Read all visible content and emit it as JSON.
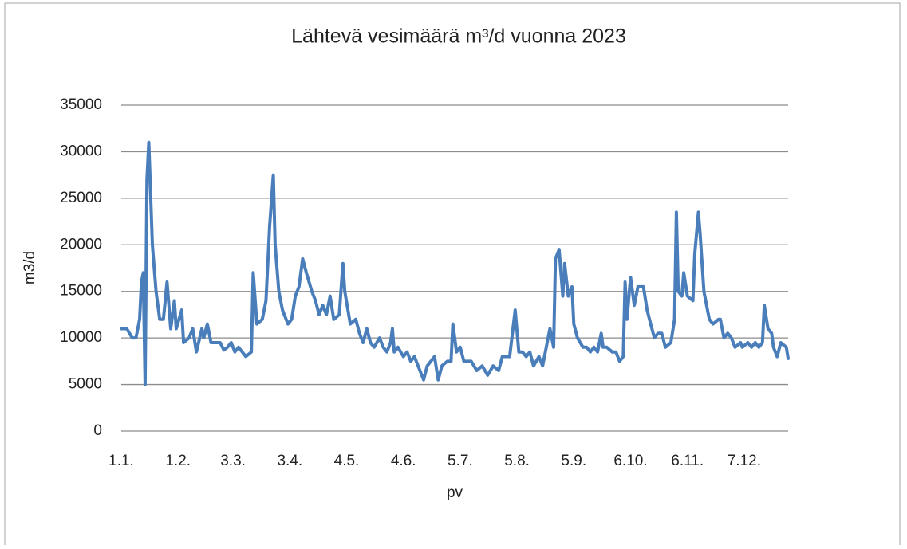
{
  "chart_data": {
    "type": "line",
    "title": "Lähtevä vesimäärä m³/d vuonna 2023",
    "x_label": "pv",
    "y_label": "m3/d",
    "xlim": [
      1,
      365
    ],
    "xticks": [
      {
        "value": 1,
        "label": "1.1."
      },
      {
        "value": 32,
        "label": "1.2."
      },
      {
        "value": 62,
        "label": "3.3."
      },
      {
        "value": 93,
        "label": "3.4."
      },
      {
        "value": 124,
        "label": "4.5."
      },
      {
        "value": 155,
        "label": "4.6."
      },
      {
        "value": 186,
        "label": "5.7."
      },
      {
        "value": 217,
        "label": "5.8."
      },
      {
        "value": 248,
        "label": "5.9."
      },
      {
        "value": 279,
        "label": "6.10."
      },
      {
        "value": 310,
        "label": "6.11."
      },
      {
        "value": 341,
        "label": "7.12."
      }
    ],
    "ylim": [
      0,
      35000
    ],
    "yticks": [
      0,
      5000,
      10000,
      15000,
      20000,
      25000,
      30000,
      35000
    ],
    "grid": true,
    "x": [
      1,
      4,
      7,
      9,
      11,
      12,
      13,
      14,
      15,
      16,
      18,
      20,
      22,
      24,
      26,
      28,
      30,
      31,
      34,
      35,
      38,
      40,
      42,
      45,
      46,
      48,
      50,
      55,
      57,
      59,
      61,
      63,
      65,
      69,
      72,
      73,
      75,
      78,
      80,
      82,
      84,
      85,
      87,
      89,
      92,
      94,
      96,
      98,
      100,
      102,
      105,
      107,
      109,
      111,
      113,
      115,
      117,
      120,
      122,
      123,
      126,
      129,
      131,
      133,
      135,
      137,
      139,
      142,
      144,
      146,
      148,
      149,
      150,
      152,
      155,
      157,
      159,
      161,
      163,
      166,
      168,
      170,
      172,
      174,
      176,
      179,
      181,
      182,
      184,
      186,
      188,
      192,
      195,
      198,
      201,
      204,
      207,
      209,
      213,
      216,
      218,
      220,
      222,
      224,
      226,
      229,
      231,
      233,
      235,
      237,
      238,
      240,
      242,
      243,
      245,
      247,
      248,
      250,
      253,
      255,
      257,
      259,
      261,
      263,
      264,
      266,
      269,
      271,
      273,
      275,
      276,
      277,
      279,
      281,
      283,
      286,
      288,
      290,
      292,
      294,
      296,
      298,
      301,
      303,
      304,
      305,
      307,
      308,
      310,
      313,
      314,
      316,
      317,
      319,
      321,
      322,
      324,
      327,
      328,
      330,
      332,
      334,
      336,
      339,
      340,
      343,
      345,
      347,
      349,
      351,
      352,
      354,
      356,
      357,
      359,
      361,
      364,
      365
    ],
    "series": [
      {
        "name": "m3/d",
        "color": "#4a7ebb",
        "values": [
          11000,
          11000,
          10000,
          10000,
          12000,
          16000,
          17000,
          5000,
          27000,
          31000,
          20000,
          15000,
          12000,
          12000,
          16000,
          11000,
          14000,
          11000,
          13000,
          9500,
          10000,
          11000,
          8500,
          11000,
          10000,
          11500,
          9500,
          9500,
          8700,
          9000,
          9500,
          8500,
          9000,
          8000,
          8500,
          17000,
          11500,
          12000,
          14000,
          22000,
          27500,
          20000,
          15000,
          13000,
          11500,
          12000,
          14500,
          15500,
          18500,
          17000,
          15000,
          14000,
          12500,
          13500,
          12500,
          14500,
          12000,
          12500,
          18000,
          15000,
          11500,
          12000,
          10500,
          9500,
          11000,
          9500,
          9000,
          10000,
          9000,
          8500,
          9500,
          11000,
          8500,
          9000,
          8000,
          8500,
          7500,
          8000,
          7000,
          5500,
          7000,
          7500,
          8000,
          5500,
          7000,
          7500,
          7500,
          11500,
          8500,
          9000,
          7500,
          7500,
          6500,
          7000,
          6000,
          7000,
          6500,
          8000,
          8000,
          13000,
          8500,
          8500,
          8000,
          8500,
          7000,
          8000,
          7000,
          9000,
          11000,
          9000,
          18500,
          19500,
          14500,
          18000,
          14500,
          15500,
          11500,
          10000,
          9000,
          9000,
          8500,
          9000,
          8500,
          10500,
          9000,
          9000,
          8500,
          8500,
          7500,
          8000,
          16000,
          12000,
          16500,
          13500,
          15500,
          15500,
          13000,
          11500,
          10000,
          10500,
          10500,
          9000,
          9500,
          12000,
          23500,
          15000,
          14500,
          17000,
          14500,
          14000,
          19000,
          23500,
          21000,
          15000,
          13000,
          12000,
          11500,
          12000,
          12000,
          10000,
          10500,
          10000,
          9000,
          9500,
          9000,
          9500,
          9000,
          9500,
          9000,
          9500,
          13500,
          11000,
          10500,
          9000,
          8000,
          9500,
          9000,
          7800
        ]
      }
    ]
  }
}
